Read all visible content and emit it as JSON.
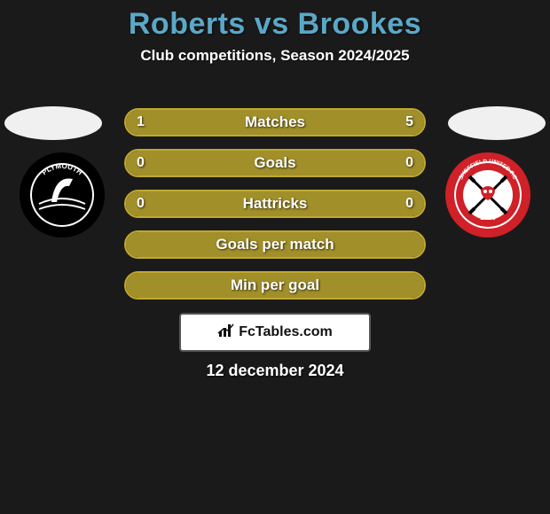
{
  "title": "Roberts vs Brookes",
  "subtitle": "Club competitions, Season 2024/2025",
  "date": "12 december 2024",
  "site": "FcTables.com",
  "colors": {
    "title_color": "#5aa8c8",
    "text_color": "#ffffff",
    "background": "#1a1a1a",
    "bar_border": "#bfa82f",
    "bar_fill_dominant": "#a18f2a",
    "bar_fill_empty": "#a18f2a",
    "site_border": "#555555",
    "site_bg": "#ffffff",
    "oval_bg": "#f0f0f0"
  },
  "crests": {
    "left": {
      "name": "plymouth-crest",
      "outer": "#000000",
      "inner": "#ffffff",
      "text": "PLYMOUTH"
    },
    "right": {
      "name": "sheffield-united-crest",
      "outer": "#d02028",
      "inner": "#ffffff",
      "accent": "#000000",
      "text": "SHEFFIELD UNITED F.C",
      "year": "1889"
    }
  },
  "bars": [
    {
      "label": "Matches",
      "left": "1",
      "right": "5",
      "left_pct": 16.7,
      "right_pct": 83.3
    },
    {
      "label": "Goals",
      "left": "0",
      "right": "0",
      "left_pct": 50,
      "right_pct": 50
    },
    {
      "label": "Hattricks",
      "left": "0",
      "right": "0",
      "left_pct": 50,
      "right_pct": 50
    },
    {
      "label": "Goals per match",
      "left": "",
      "right": "",
      "left_pct": 50,
      "right_pct": 50
    },
    {
      "label": "Min per goal",
      "left": "",
      "right": "",
      "left_pct": 50,
      "right_pct": 50
    }
  ],
  "bar_style": {
    "height": 32,
    "gap": 14,
    "border_radius": 16,
    "label_fontsize": 17,
    "value_fontsize": 16,
    "font_weight": 900
  }
}
